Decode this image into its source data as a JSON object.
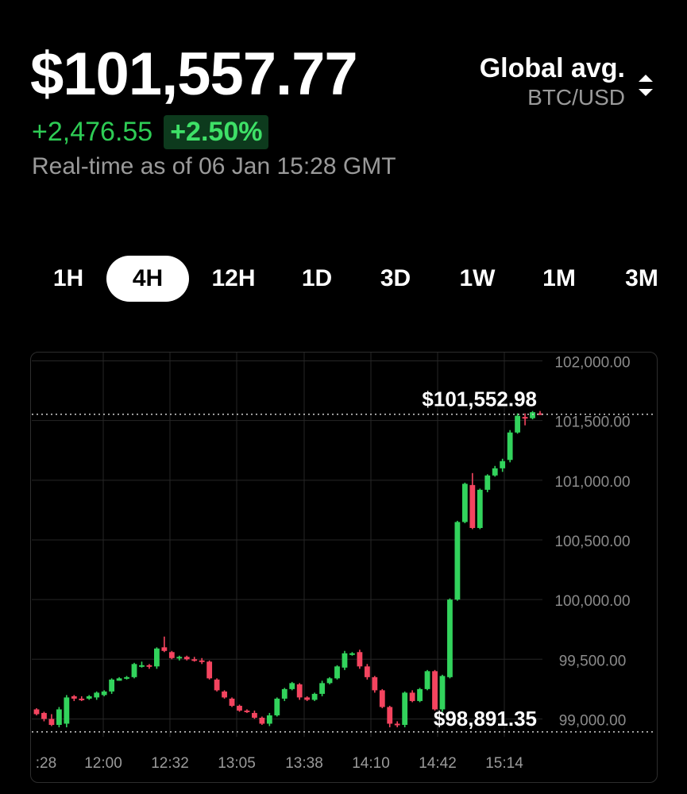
{
  "header": {
    "price": "$101,557.77",
    "change_abs": "+2,476.55",
    "change_pct": "+2.50%",
    "as_of": "Real-time as of 06 Jan 15:28 GMT"
  },
  "pair_selector": {
    "title": "Global avg.",
    "pair": "BTC/USD",
    "icon": "sort-arrows-icon"
  },
  "ranges": [
    {
      "label": "1H",
      "active": false
    },
    {
      "label": "4H",
      "active": true
    },
    {
      "label": "12H",
      "active": false
    },
    {
      "label": "1D",
      "active": false
    },
    {
      "label": "3D",
      "active": false
    },
    {
      "label": "1W",
      "active": false
    },
    {
      "label": "1M",
      "active": false
    },
    {
      "label": "3M",
      "active": false
    }
  ],
  "colors": {
    "up": "#32d35c",
    "down": "#f4445f",
    "accent_bg": "#0d3a1d"
  },
  "chart_data": {
    "type": "candlestick",
    "ylim": [
      98850,
      102070
    ],
    "y_ticks": [
      "102,000.00",
      "101,500.00",
      "101,000.00",
      "100,500.00",
      "100,000.00",
      "99,500.00",
      "99,000.00"
    ],
    "y_tick_values": [
      102000,
      101500,
      101000,
      100500,
      100000,
      99500,
      99000
    ],
    "x_ticks": [
      ":28",
      "12:00",
      "12:32",
      "13:05",
      "13:38",
      "14:10",
      "14:42",
      "15:14"
    ],
    "max_label": "$101,552.98",
    "max_value": 101552.98,
    "min_label": "$98,891.35",
    "min_value": 98891.35,
    "grid": true,
    "candles": [
      [
        99080,
        99090,
        99030,
        99040
      ],
      [
        99050,
        99060,
        98980,
        99000
      ],
      [
        99000,
        99040,
        98940,
        98950
      ],
      [
        98950,
        99100,
        98930,
        99080
      ],
      [
        98960,
        99200,
        98930,
        99180
      ],
      [
        99190,
        99200,
        99150,
        99170
      ],
      [
        99170,
        99190,
        99150,
        99160
      ],
      [
        99170,
        99200,
        99160,
        99190
      ],
      [
        99180,
        99230,
        99160,
        99220
      ],
      [
        99200,
        99240,
        99190,
        99230
      ],
      [
        99230,
        99340,
        99210,
        99330
      ],
      [
        99320,
        99350,
        99320,
        99340
      ],
      [
        99340,
        99360,
        99330,
        99350
      ],
      [
        99350,
        99470,
        99340,
        99460
      ],
      [
        99450,
        99480,
        99430,
        99450
      ],
      [
        99450,
        99460,
        99420,
        99440
      ],
      [
        99440,
        99600,
        99420,
        99590
      ],
      [
        99600,
        99690,
        99560,
        99570
      ],
      [
        99560,
        99570,
        99500,
        99510
      ],
      [
        99510,
        99530,
        99490,
        99520
      ],
      [
        99520,
        99530,
        99490,
        99500
      ],
      [
        99500,
        99520,
        99480,
        99490
      ],
      [
        99490,
        99510,
        99460,
        99480
      ],
      [
        99480,
        99490,
        99330,
        99340
      ],
      [
        99330,
        99340,
        99230,
        99240
      ],
      [
        99230,
        99240,
        99170,
        99180
      ],
      [
        99170,
        99180,
        99100,
        99110
      ],
      [
        99110,
        99120,
        99060,
        99070
      ],
      [
        99070,
        99080,
        99050,
        99060
      ],
      [
        99050,
        99070,
        99000,
        99010
      ],
      [
        99010,
        99020,
        98950,
        98960
      ],
      [
        98960,
        99050,
        98940,
        99030
      ],
      [
        99030,
        99180,
        99020,
        99170
      ],
      [
        99170,
        99260,
        99150,
        99250
      ],
      [
        99250,
        99310,
        99240,
        99300
      ],
      [
        99290,
        99300,
        99160,
        99180
      ],
      [
        99180,
        99190,
        99150,
        99160
      ],
      [
        99160,
        99220,
        99150,
        99210
      ],
      [
        99210,
        99320,
        99190,
        99300
      ],
      [
        99300,
        99350,
        99290,
        99340
      ],
      [
        99340,
        99450,
        99330,
        99440
      ],
      [
        99430,
        99570,
        99410,
        99550
      ],
      [
        99540,
        99560,
        99530,
        99550
      ],
      [
        99560,
        99580,
        99420,
        99440
      ],
      [
        99440,
        99460,
        99330,
        99350
      ],
      [
        99350,
        99360,
        99220,
        99240
      ],
      [
        99240,
        99250,
        99090,
        99100
      ],
      [
        99100,
        99110,
        98930,
        98960
      ],
      [
        98960,
        98980,
        98930,
        98950
      ],
      [
        98950,
        99230,
        98930,
        99220
      ],
      [
        99220,
        99240,
        99140,
        99150
      ],
      [
        99150,
        99260,
        99140,
        99250
      ],
      [
        99250,
        99410,
        99240,
        99400
      ],
      [
        99400,
        99410,
        99070,
        99080
      ],
      [
        99080,
        99370,
        99060,
        99360
      ],
      [
        99350,
        100010,
        99340,
        100000
      ],
      [
        100000,
        100660,
        99990,
        100650
      ],
      [
        100650,
        100980,
        100640,
        100970
      ],
      [
        100960,
        101060,
        100590,
        100600
      ],
      [
        100600,
        100930,
        100590,
        100920
      ],
      [
        100920,
        101050,
        100900,
        101040
      ],
      [
        101040,
        101120,
        101030,
        101100
      ],
      [
        101100,
        101180,
        101070,
        101160
      ],
      [
        101170,
        101420,
        101150,
        101400
      ],
      [
        101400,
        101560,
        101390,
        101540
      ],
      [
        101530,
        101560,
        101460,
        101520
      ],
      [
        101520,
        101580,
        101510,
        101570
      ],
      [
        101560,
        101580,
        101550,
        101555
      ]
    ]
  }
}
